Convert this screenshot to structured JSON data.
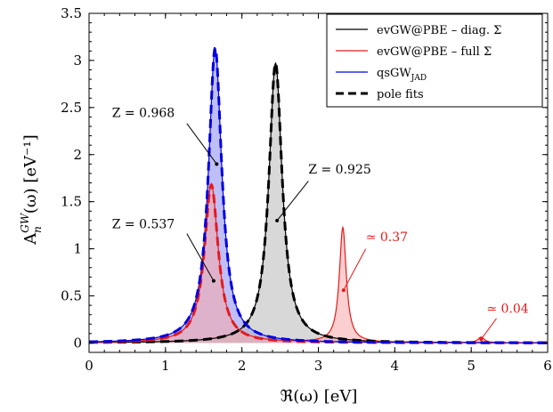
{
  "chart_data": {
    "type": "line",
    "xlabel": "ℜ(ω) [eV]",
    "ylabel_main": "A",
    "ylabel_sup": "GW",
    "ylabel_sub": "n",
    "ylabel_rest": "(ω) [eV⁻¹]",
    "xlim": [
      0,
      6
    ],
    "ylim": [
      -0.1,
      3.5
    ],
    "x_ticks": [
      "0",
      "1",
      "2",
      "3",
      "4",
      "5",
      "6"
    ],
    "y_ticks": [
      "0",
      "0.5",
      "1",
      "1.5",
      "2",
      "2.5",
      "3",
      "3.5"
    ],
    "legend_position": "top-right",
    "legend": [
      {
        "label_a": "evGW@PBE – diag. ",
        "label_b": "Σ",
        "color": "#000000",
        "style": "solid"
      },
      {
        "label_a": "evGW@PBE –   full ",
        "label_b": "Σ",
        "color": "#e41a1c",
        "style": "solid"
      },
      {
        "label_a": "qsGW",
        "label_b": "JAD",
        "color": "#0000e0",
        "style": "solid"
      },
      {
        "label_a": "pole fits",
        "label_b": "",
        "color": "#000000",
        "style": "dashed"
      }
    ],
    "series": [
      {
        "name": "evGW@PBE – diag. Σ",
        "color": "#000000",
        "fill": "#b8b8b8",
        "peaks": [
          {
            "x0": 2.44,
            "height": 2.97,
            "gamma": 0.105
          }
        ]
      },
      {
        "name": "evGW@PBE – full Σ",
        "color": "#e41a1c",
        "fill": "#f7a8a8",
        "peaks": [
          {
            "x0": 1.6,
            "height": 1.68,
            "gamma": 0.11
          },
          {
            "x0": 3.32,
            "height": 1.22,
            "gamma": 0.055
          },
          {
            "x0": 5.13,
            "height": 0.06,
            "gamma": 0.05
          }
        ]
      },
      {
        "name": "qsGW JAD",
        "color": "#0000e0",
        "fill": "#8a8af0",
        "peaks": [
          {
            "x0": 1.65,
            "height": 3.13,
            "gamma": 0.105
          }
        ]
      }
    ],
    "pole_fits": [
      {
        "color": "#000000",
        "x0": 2.44,
        "height": 2.97,
        "gamma": 0.105
      },
      {
        "color": "#e41a1c",
        "x0": 1.6,
        "height": 1.68,
        "gamma": 0.11
      },
      {
        "color": "#0000e0",
        "x0": 1.65,
        "height": 3.13,
        "gamma": 0.105
      }
    ],
    "annotations": [
      {
        "text": "Z = 0.968",
        "color": "#000000",
        "text_x": 0.3,
        "text_y": 2.4,
        "point_x": 1.67,
        "point_y": 1.9,
        "line_from_x": 1.28,
        "line_from_y": 2.33
      },
      {
        "text": "Z = 0.925",
        "color": "#000000",
        "text_x": 2.87,
        "text_y": 1.8,
        "point_x": 2.46,
        "point_y": 1.3,
        "line_from_x": 2.87,
        "line_from_y": 1.72
      },
      {
        "text": "Z = 0.537",
        "color": "#000000",
        "text_x": 0.3,
        "text_y": 1.22,
        "point_x": 1.63,
        "point_y": 0.66,
        "line_from_x": 1.28,
        "line_from_y": 1.16
      },
      {
        "text": "≃ 0.37",
        "color": "#e41a1c",
        "text_x": 3.62,
        "text_y": 1.08,
        "point_x": 3.33,
        "point_y": 0.56,
        "line_from_x": 3.62,
        "line_from_y": 1.0
      },
      {
        "text": "≃ 0.04",
        "color": "#e41a1c",
        "text_x": 5.2,
        "text_y": 0.32,
        "point_x": 5.13,
        "point_y": 0.04,
        "line_from_x": 5.33,
        "line_from_y": 0.26
      }
    ]
  }
}
